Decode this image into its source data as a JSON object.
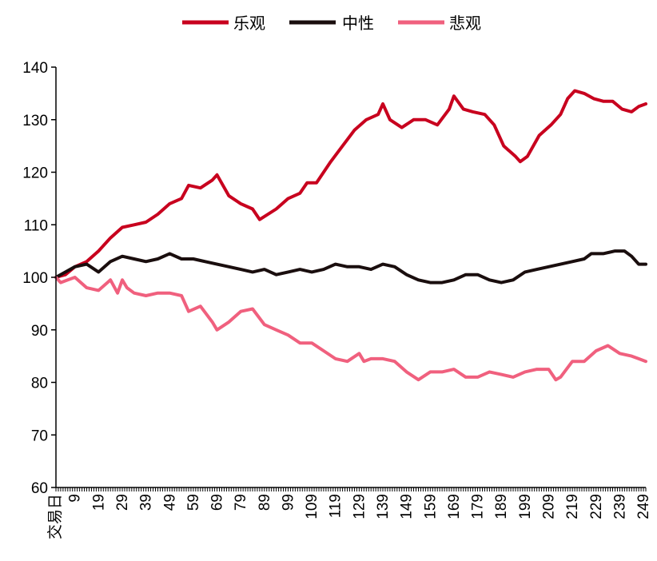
{
  "chart_data": {
    "type": "line",
    "title": "",
    "xlabel": "",
    "ylabel": "",
    "ylim": [
      60,
      140
    ],
    "yticks": [
      60,
      70,
      80,
      90,
      100,
      110,
      120,
      130,
      140
    ],
    "xlim": [
      1,
      250
    ],
    "x_first_tick_label": "交易日",
    "xticks": [
      9,
      19,
      29,
      39,
      49,
      59,
      69,
      79,
      89,
      99,
      109,
      119,
      129,
      139,
      149,
      159,
      169,
      179,
      189,
      199,
      209,
      219,
      229,
      239,
      249
    ],
    "grid": false,
    "legend_position": "top-center",
    "series": [
      {
        "name": "乐观",
        "color": "#C8001E",
        "points": [
          [
            1,
            100
          ],
          [
            5,
            100.5
          ],
          [
            9,
            102
          ],
          [
            14,
            103
          ],
          [
            19,
            105
          ],
          [
            24,
            107.5
          ],
          [
            29,
            109.5
          ],
          [
            34,
            110
          ],
          [
            39,
            110.5
          ],
          [
            44,
            112
          ],
          [
            49,
            114
          ],
          [
            54,
            115
          ],
          [
            57,
            117.5
          ],
          [
            62,
            117
          ],
          [
            67,
            118.5
          ],
          [
            69,
            119.5
          ],
          [
            74,
            115.5
          ],
          [
            79,
            114
          ],
          [
            84,
            113
          ],
          [
            87,
            111
          ],
          [
            94,
            113
          ],
          [
            99,
            115
          ],
          [
            104,
            116
          ],
          [
            107,
            118
          ],
          [
            111,
            118
          ],
          [
            117,
            122
          ],
          [
            122,
            125
          ],
          [
            127,
            128
          ],
          [
            132,
            130
          ],
          [
            137,
            131
          ],
          [
            139,
            133
          ],
          [
            142,
            130
          ],
          [
            147,
            128.5
          ],
          [
            152,
            130
          ],
          [
            157,
            130
          ],
          [
            162,
            129
          ],
          [
            167,
            132
          ],
          [
            169,
            134.5
          ],
          [
            173,
            132
          ],
          [
            177,
            131.5
          ],
          [
            182,
            131
          ],
          [
            186,
            129
          ],
          [
            190,
            125
          ],
          [
            195,
            123
          ],
          [
            197,
            122
          ],
          [
            200,
            123
          ],
          [
            205,
            127
          ],
          [
            210,
            129
          ],
          [
            214,
            131
          ],
          [
            217,
            134
          ],
          [
            220,
            135.5
          ],
          [
            224,
            135
          ],
          [
            228,
            134
          ],
          [
            232,
            133.5
          ],
          [
            236,
            133.5
          ],
          [
            240,
            132
          ],
          [
            244,
            131.5
          ],
          [
            247,
            132.5
          ],
          [
            250,
            133
          ]
        ]
      },
      {
        "name": "中性",
        "color": "#1A0E0E",
        "points": [
          [
            1,
            100
          ],
          [
            5,
            101
          ],
          [
            9,
            102
          ],
          [
            14,
            102.5
          ],
          [
            19,
            101
          ],
          [
            24,
            103
          ],
          [
            29,
            104
          ],
          [
            34,
            103.5
          ],
          [
            39,
            103
          ],
          [
            44,
            103.5
          ],
          [
            49,
            104.5
          ],
          [
            54,
            103.5
          ],
          [
            59,
            103.5
          ],
          [
            64,
            103
          ],
          [
            69,
            102.5
          ],
          [
            74,
            102
          ],
          [
            79,
            101.5
          ],
          [
            84,
            101
          ],
          [
            89,
            101.5
          ],
          [
            94,
            100.5
          ],
          [
            99,
            101
          ],
          [
            104,
            101.5
          ],
          [
            109,
            101
          ],
          [
            114,
            101.5
          ],
          [
            119,
            102.5
          ],
          [
            124,
            102
          ],
          [
            129,
            102
          ],
          [
            134,
            101.5
          ],
          [
            139,
            102.5
          ],
          [
            144,
            102
          ],
          [
            149,
            100.5
          ],
          [
            154,
            99.5
          ],
          [
            159,
            99
          ],
          [
            164,
            99
          ],
          [
            169,
            99.5
          ],
          [
            174,
            100.5
          ],
          [
            179,
            100.5
          ],
          [
            184,
            99.5
          ],
          [
            189,
            99
          ],
          [
            194,
            99.5
          ],
          [
            199,
            101
          ],
          [
            204,
            101.5
          ],
          [
            209,
            102
          ],
          [
            214,
            102.5
          ],
          [
            219,
            103
          ],
          [
            224,
            103.5
          ],
          [
            227,
            104.5
          ],
          [
            232,
            104.5
          ],
          [
            237,
            105
          ],
          [
            241,
            105
          ],
          [
            244,
            104
          ],
          [
            247,
            102.5
          ],
          [
            250,
            102.5
          ]
        ]
      },
      {
        "name": "悲观",
        "color": "#F0607E",
        "points": [
          [
            1,
            100
          ],
          [
            3,
            99
          ],
          [
            6,
            99.5
          ],
          [
            9,
            100
          ],
          [
            14,
            98
          ],
          [
            19,
            97.5
          ],
          [
            24,
            99.5
          ],
          [
            27,
            97
          ],
          [
            29,
            99.5
          ],
          [
            31,
            98
          ],
          [
            34,
            97
          ],
          [
            39,
            96.5
          ],
          [
            44,
            97
          ],
          [
            49,
            97
          ],
          [
            54,
            96.5
          ],
          [
            57,
            93.5
          ],
          [
            62,
            94.5
          ],
          [
            67,
            91.5
          ],
          [
            69,
            90
          ],
          [
            74,
            91.5
          ],
          [
            79,
            93.5
          ],
          [
            84,
            94
          ],
          [
            89,
            91
          ],
          [
            94,
            90
          ],
          [
            99,
            89
          ],
          [
            104,
            87.5
          ],
          [
            109,
            87.5
          ],
          [
            114,
            86
          ],
          [
            119,
            84.5
          ],
          [
            124,
            84
          ],
          [
            129,
            85.5
          ],
          [
            131,
            84
          ],
          [
            134,
            84.5
          ],
          [
            139,
            84.5
          ],
          [
            144,
            84
          ],
          [
            149,
            82
          ],
          [
            154,
            80.5
          ],
          [
            159,
            82
          ],
          [
            164,
            82
          ],
          [
            169,
            82.5
          ],
          [
            174,
            81
          ],
          [
            179,
            81
          ],
          [
            184,
            82
          ],
          [
            189,
            81.5
          ],
          [
            194,
            81
          ],
          [
            199,
            82
          ],
          [
            204,
            82.5
          ],
          [
            209,
            82.5
          ],
          [
            212,
            80.5
          ],
          [
            214,
            81
          ],
          [
            219,
            84
          ],
          [
            224,
            84
          ],
          [
            229,
            86
          ],
          [
            234,
            87
          ],
          [
            239,
            85.5
          ],
          [
            244,
            85
          ],
          [
            247,
            84.5
          ],
          [
            250,
            84
          ]
        ]
      }
    ]
  }
}
